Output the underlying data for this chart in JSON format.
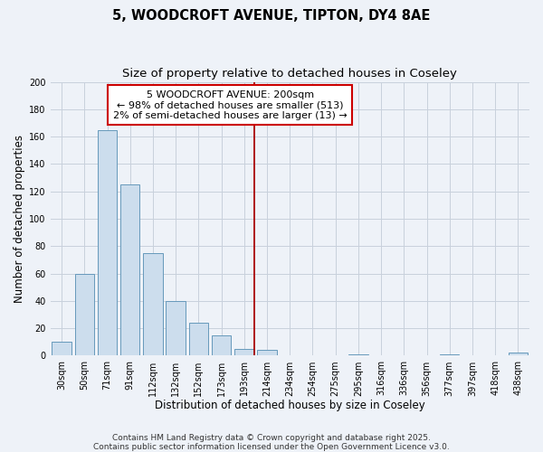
{
  "title1": "5, WOODCROFT AVENUE, TIPTON, DY4 8AE",
  "title2": "Size of property relative to detached houses in Coseley",
  "xlabel": "Distribution of detached houses by size in Coseley",
  "ylabel": "Number of detached properties",
  "categories": [
    "30sqm",
    "50sqm",
    "71sqm",
    "91sqm",
    "112sqm",
    "132sqm",
    "152sqm",
    "173sqm",
    "193sqm",
    "214sqm",
    "234sqm",
    "254sqm",
    "275sqm",
    "295sqm",
    "316sqm",
    "336sqm",
    "356sqm",
    "377sqm",
    "397sqm",
    "418sqm",
    "438sqm"
  ],
  "values": [
    10,
    60,
    165,
    125,
    75,
    40,
    24,
    15,
    5,
    4,
    0,
    0,
    0,
    1,
    0,
    0,
    0,
    1,
    0,
    0,
    2
  ],
  "bar_color": "#ccdded",
  "bar_edge_color": "#6699bb",
  "grid_color": "#c8d0dc",
  "background_color": "#eef2f8",
  "vline_color": "#aa0000",
  "annotation_title": "5 WOODCROFT AVENUE: 200sqm",
  "annotation_line1": "← 98% of detached houses are smaller (513)",
  "annotation_line2": "2% of semi-detached houses are larger (13) →",
  "annotation_box_color": "#ffffff",
  "annotation_box_edge": "#cc0000",
  "ylim": [
    0,
    200
  ],
  "yticks": [
    0,
    20,
    40,
    60,
    80,
    100,
    120,
    140,
    160,
    180,
    200
  ],
  "footnote1": "Contains HM Land Registry data © Crown copyright and database right 2025.",
  "footnote2": "Contains public sector information licensed under the Open Government Licence v3.0.",
  "title_fontsize": 10.5,
  "subtitle_fontsize": 9.5,
  "axis_label_fontsize": 8.5,
  "tick_fontsize": 7,
  "annotation_fontsize": 8,
  "footnote_fontsize": 6.5
}
